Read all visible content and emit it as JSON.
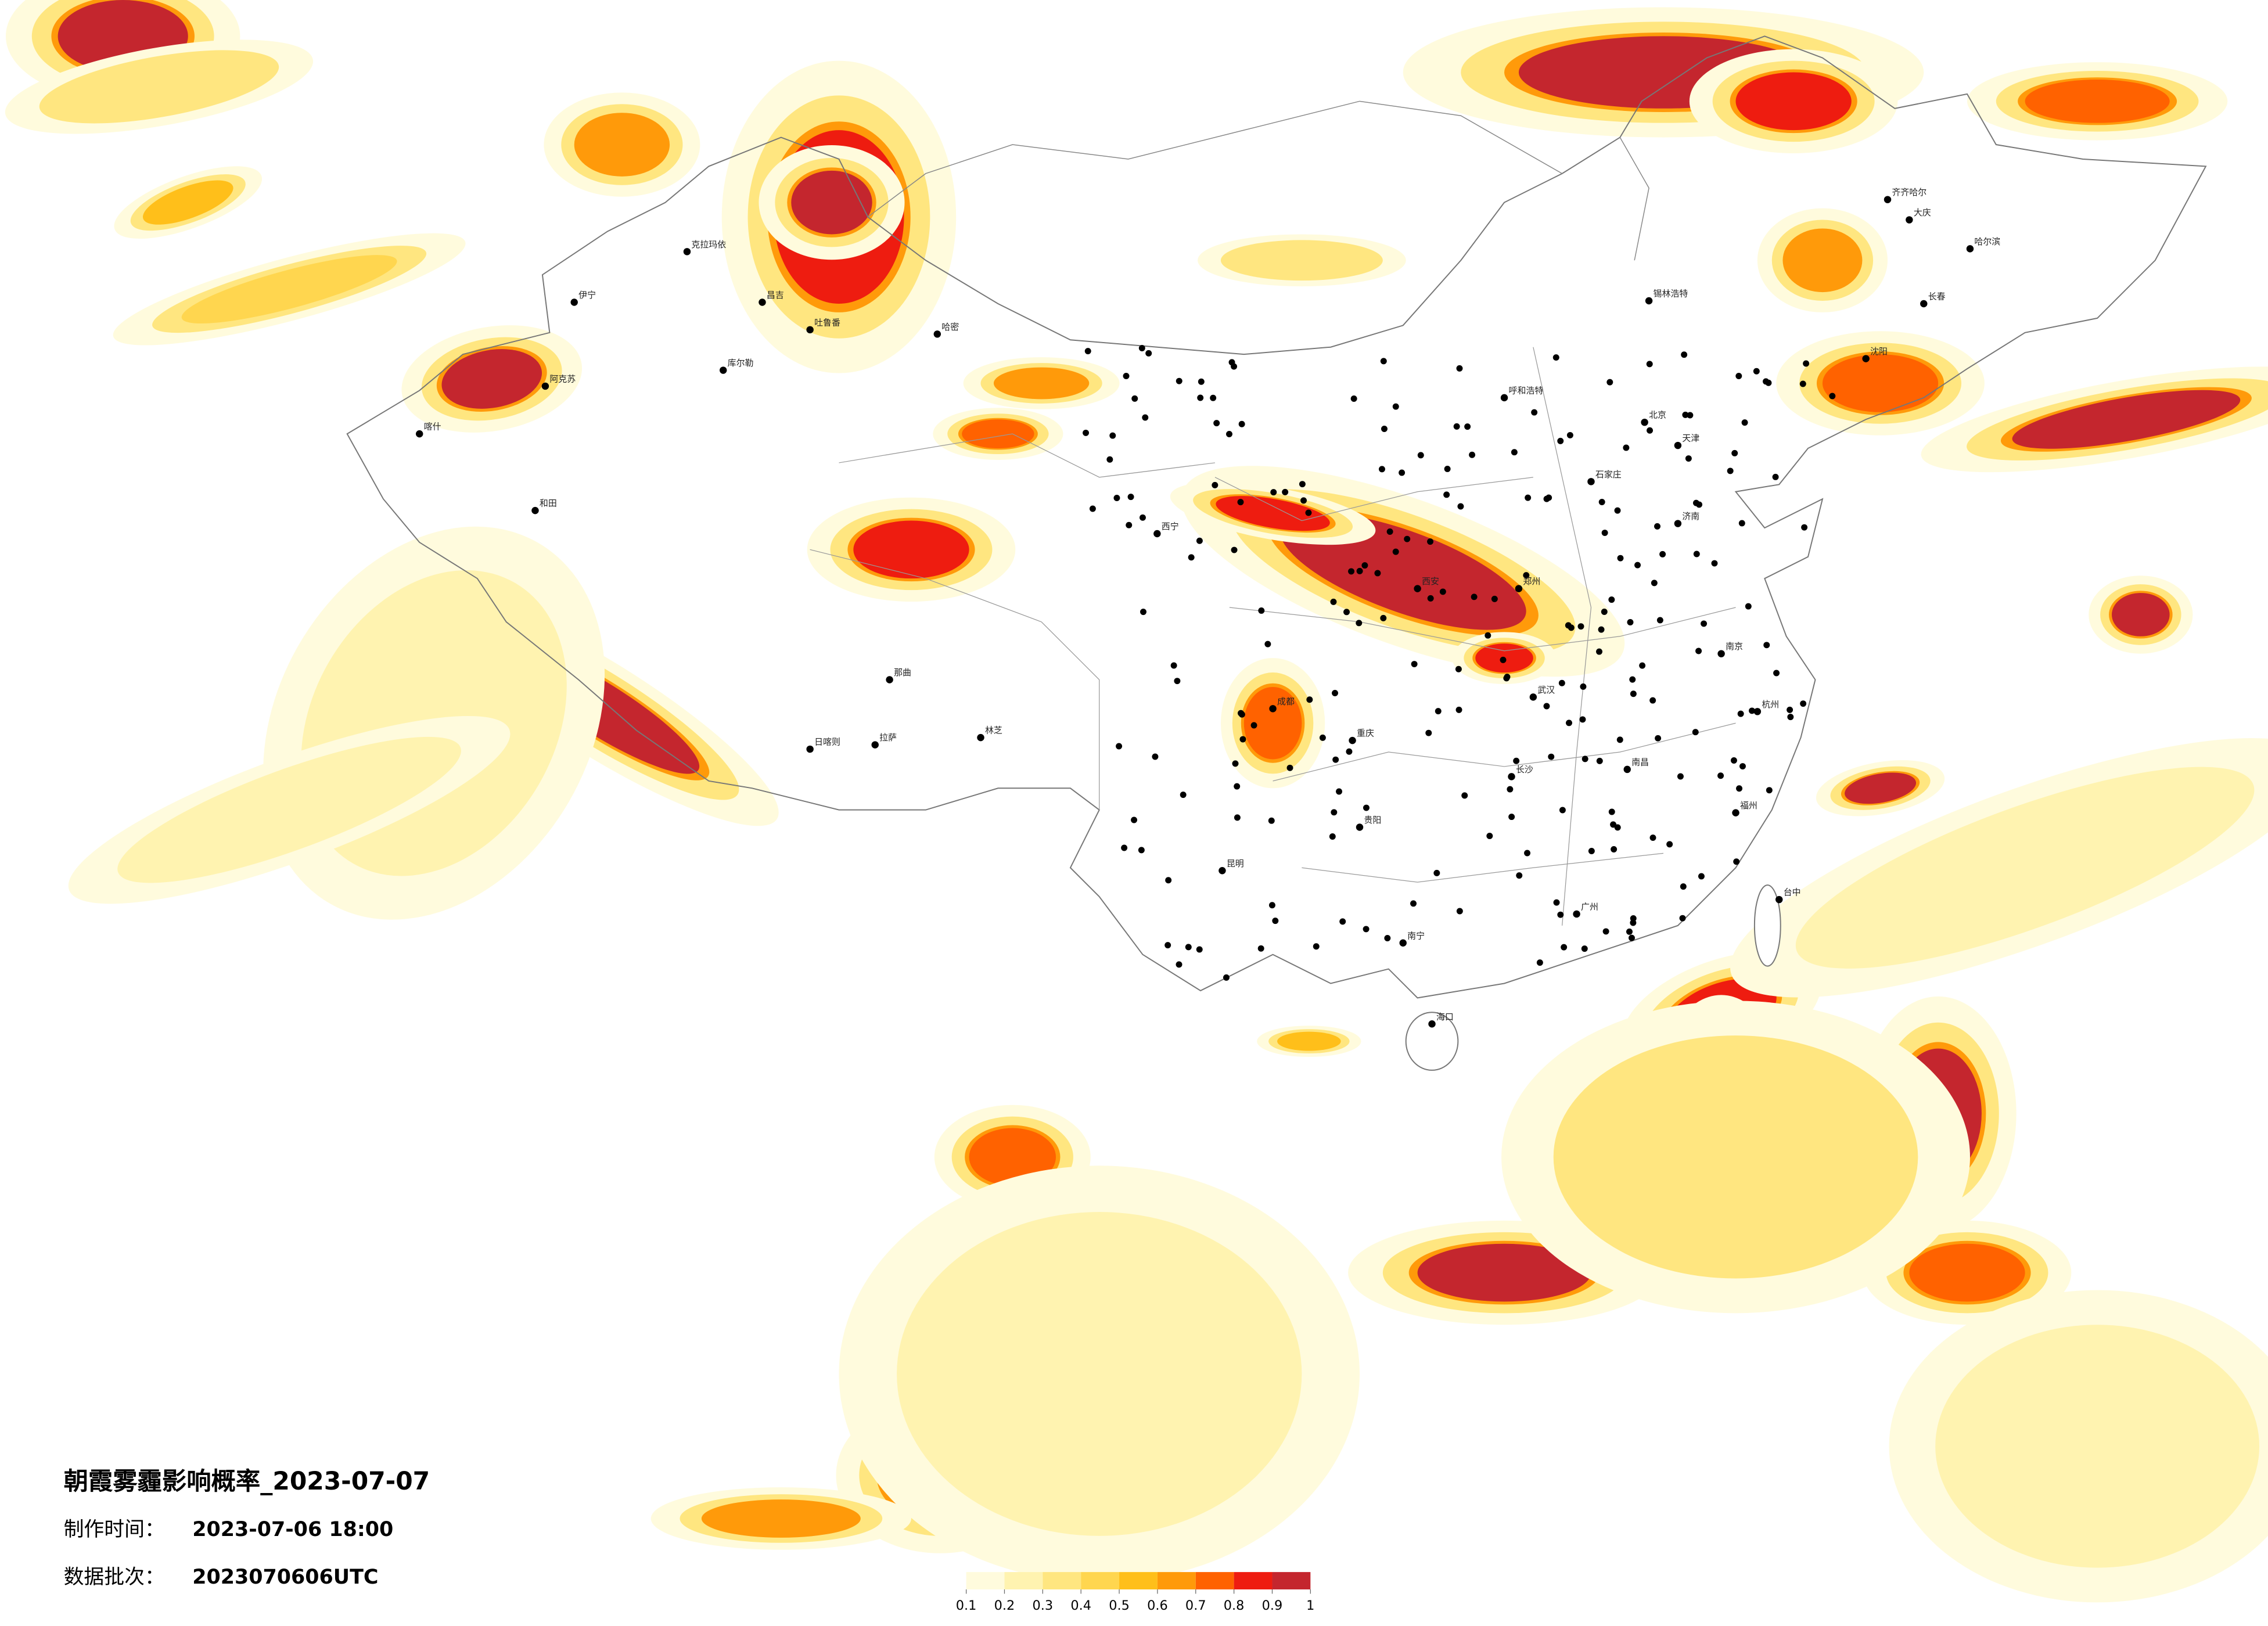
{
  "header": {
    "title": "朝霞雾霾影响概率_2023-07-07",
    "made_label": "制作时间：",
    "made_time": "2023-07-06 18:00",
    "batch_label": "数据批次：",
    "batch": "2023070606UTC"
  },
  "legend": {
    "ticks": [
      0.1,
      0.2,
      0.3,
      0.4,
      0.5,
      0.6,
      0.7,
      0.8,
      0.9,
      1
    ],
    "colors": [
      "#fffbdd",
      "#fff3b0",
      "#ffe680",
      "#ffd64f",
      "#ffbf1a",
      "#ff9a0a",
      "#ff6200",
      "#ee1c10",
      "#c4262e"
    ]
  },
  "cities": [
    "克拉玛依",
    "伊宁",
    "昌吉",
    "吐鲁番",
    "哈密",
    "库尔勒",
    "阿克苏",
    "喀什",
    "和田",
    "日喀则",
    "拉萨",
    "那曲",
    "林芝",
    "西宁",
    "呼和浩特",
    "北京",
    "天津",
    "石家庄",
    "济南",
    "郑州",
    "西安",
    "成都",
    "重庆",
    "贵阳",
    "昆明",
    "南宁",
    "广州",
    "福州",
    "南京",
    "杭州",
    "武汉",
    "长沙",
    "南昌",
    "哈尔滨",
    "长春",
    "沈阳",
    "齐齐哈尔",
    "大庆",
    "锡林浩特",
    "海口",
    "台中"
  ]
}
